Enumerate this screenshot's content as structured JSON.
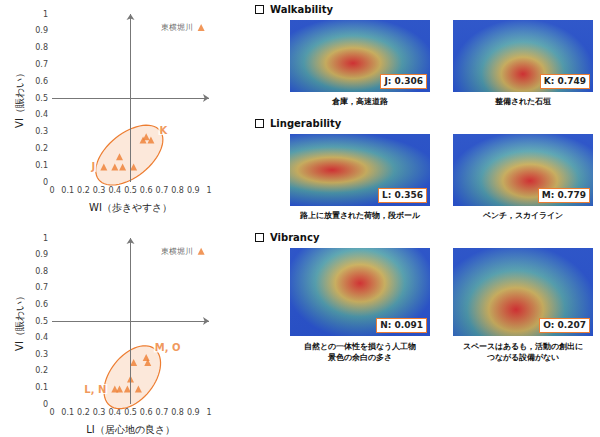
{
  "chart_data": [
    {
      "type": "scatter",
      "xlabel": "WI（歩きやすさ）",
      "ylabel": "VI（賑わい）",
      "xlim": [
        0,
        1
      ],
      "ylim": [
        0,
        1
      ],
      "xticks": [
        0,
        0.1,
        0.2,
        0.3,
        0.4,
        0.5,
        0.6,
        0.7,
        0.8,
        0.9,
        1
      ],
      "yticks": [
        0,
        0.1,
        0.2,
        0.3,
        0.4,
        0.5,
        0.6,
        0.7,
        0.8,
        0.9,
        1
      ],
      "grid": false,
      "marker": "triangle",
      "color": "#ed7d31",
      "reference_lines": {
        "x": 0.5,
        "y": 0.5
      },
      "series": [
        {
          "x": [
            0.33,
            0.4,
            0.43,
            0.45,
            0.52,
            0.58,
            0.6,
            0.63
          ],
          "y": [
            0.09,
            0.09,
            0.15,
            0.09,
            0.09,
            0.25,
            0.27,
            0.25
          ],
          "annotations": [
            "J",
            null,
            null,
            null,
            null,
            null,
            null,
            "K"
          ]
        },
        {
          "name": "東横堀川",
          "x": [
            0.95
          ],
          "y": [
            0.92
          ]
        }
      ]
    },
    {
      "type": "scatter",
      "xlabel": "LI（居心地の良さ）",
      "ylabel": "VI（賑わい）",
      "xlim": [
        0,
        1
      ],
      "ylim": [
        0,
        1
      ],
      "xticks": [
        0,
        0.1,
        0.2,
        0.3,
        0.4,
        0.5,
        0.6,
        0.7,
        0.8,
        0.9,
        1
      ],
      "yticks": [
        0,
        0.1,
        0.2,
        0.3,
        0.4,
        0.5,
        0.6,
        0.7,
        0.8,
        0.9,
        1
      ],
      "grid": false,
      "marker": "triangle",
      "color": "#ed7d31",
      "reference_lines": {
        "x": 0.5,
        "y": 0.5
      },
      "series": [
        {
          "x": [
            0.4,
            0.43,
            0.48,
            0.5,
            0.52,
            0.55,
            0.6,
            0.61
          ],
          "y": [
            0.09,
            0.09,
            0.09,
            0.15,
            0.25,
            0.09,
            0.28,
            0.25
          ],
          "annotations": [
            "L, N",
            null,
            null,
            null,
            null,
            null,
            "M, O",
            null
          ]
        },
        {
          "name": "東横堀川",
          "x": [
            0.95
          ],
          "y": [
            0.92
          ]
        }
      ]
    }
  ],
  "panels": [
    {
      "title": "Walkability",
      "items": [
        {
          "label": "J: 0.306",
          "caption": [
            "倉庫，高速道路"
          ]
        },
        {
          "label": "K: 0.749",
          "caption": [
            "整備された石垣"
          ]
        }
      ]
    },
    {
      "title": "Lingerability",
      "items": [
        {
          "label": "L: 0.356",
          "caption": [
            "路上に放置された荷物，段ボール"
          ]
        },
        {
          "label": "M: 0.779",
          "caption": [
            "ベンチ，スカイライン"
          ]
        }
      ]
    },
    {
      "title": "Vibrancy",
      "items": [
        {
          "label": "N: 0.091",
          "caption": [
            "自然との一体性を損なう人工物",
            "景色の余白の多さ"
          ]
        },
        {
          "label": "O: 0.207",
          "caption": [
            "スペースはあるも，活動の創出に",
            "つながる設備がない"
          ]
        }
      ]
    }
  ]
}
